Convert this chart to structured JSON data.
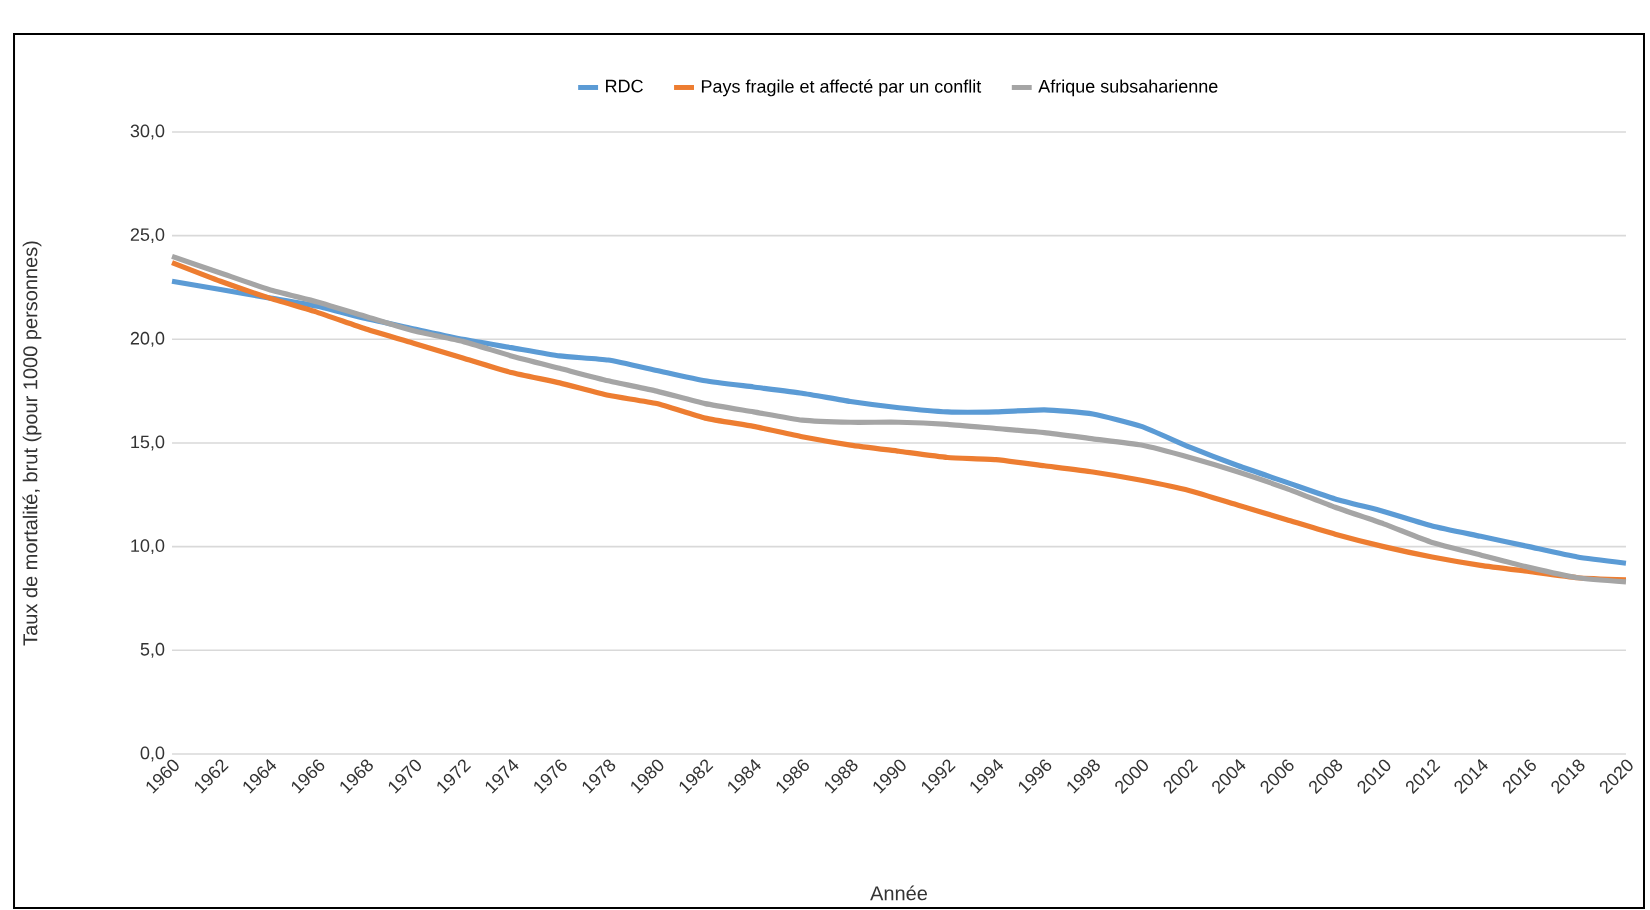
{
  "chart_data": {
    "type": "line",
    "xlabel": "Année",
    "ylabel": "Taux de mortalité, brut (pour 1000 personnes)",
    "x": [
      1960,
      1962,
      1964,
      1966,
      1968,
      1970,
      1972,
      1974,
      1976,
      1978,
      1980,
      1982,
      1984,
      1986,
      1988,
      1990,
      1992,
      1994,
      1996,
      1998,
      2000,
      2002,
      2004,
      2006,
      2008,
      2010,
      2012,
      2014,
      2016,
      2018,
      2020
    ],
    "series": [
      {
        "name": "RDC",
        "color": "#5b9bd5",
        "values": [
          22.8,
          22.4,
          22.0,
          21.6,
          21.0,
          20.5,
          20.0,
          19.6,
          19.2,
          19.0,
          18.5,
          18.0,
          17.7,
          17.4,
          17.0,
          16.7,
          16.5,
          16.5,
          16.6,
          16.4,
          15.8,
          14.8,
          13.9,
          13.1,
          12.3,
          11.7,
          11.0,
          10.5,
          10.0,
          9.5,
          9.2
        ]
      },
      {
        "name": "Pays fragile et affecté par un conflit",
        "color": "#ed7d31",
        "values": [
          23.7,
          22.8,
          22.0,
          21.3,
          20.5,
          19.8,
          19.1,
          18.4,
          17.9,
          17.3,
          16.9,
          16.2,
          15.8,
          15.3,
          14.9,
          14.6,
          14.3,
          14.2,
          13.9,
          13.6,
          13.2,
          12.7,
          12.0,
          11.3,
          10.6,
          10.0,
          9.5,
          9.1,
          8.8,
          8.5,
          8.4
        ]
      },
      {
        "name": "Afrique subsaharienne",
        "color": "#a5a5a5",
        "values": [
          24.0,
          23.2,
          22.4,
          21.8,
          21.1,
          20.4,
          19.9,
          19.2,
          18.6,
          18.0,
          17.5,
          16.9,
          16.5,
          16.1,
          16.0,
          16.0,
          15.9,
          15.7,
          15.5,
          15.2,
          14.9,
          14.3,
          13.6,
          12.8,
          11.9,
          11.1,
          10.2,
          9.6,
          9.0,
          8.5,
          8.3
        ]
      }
    ],
    "xlim": [
      1960,
      2020
    ],
    "xticks": [
      1960,
      1962,
      1964,
      1966,
      1968,
      1970,
      1972,
      1974,
      1976,
      1978,
      1980,
      1982,
      1984,
      1986,
      1988,
      1990,
      1992,
      1994,
      1996,
      1998,
      2000,
      2002,
      2004,
      2006,
      2008,
      2010,
      2012,
      2014,
      2016,
      2018,
      2020
    ],
    "ylim": [
      0,
      30
    ],
    "yticks": [
      {
        "value": 0,
        "label": "0,0"
      },
      {
        "value": 5,
        "label": "5,0"
      },
      {
        "value": 10,
        "label": "10,0"
      },
      {
        "value": 15,
        "label": "15,0"
      },
      {
        "value": 20,
        "label": "20,0"
      },
      {
        "value": 25,
        "label": "25,0"
      },
      {
        "value": 30,
        "label": "30,0"
      }
    ],
    "grid": "y",
    "legend": "top",
    "marker": "none",
    "line_style": "solid"
  }
}
